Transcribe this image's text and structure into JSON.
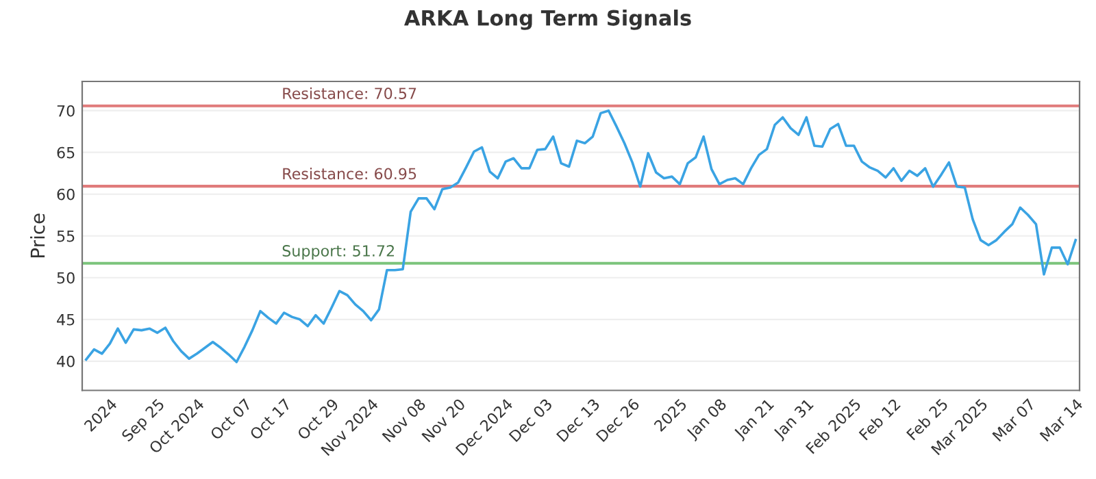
{
  "chart_data": {
    "type": "line",
    "title": "ARKA Long Term Signals",
    "ylabel": "Price",
    "categories": [
      null,
      null,
      null,
      "2024",
      null,
      null,
      null,
      null,
      null,
      "Sep 25",
      null,
      null,
      null,
      null,
      "Oct 2024",
      null,
      null,
      null,
      null,
      null,
      "Oct 07",
      null,
      null,
      null,
      null,
      "Oct 17",
      null,
      null,
      null,
      null,
      null,
      "Oct 29",
      null,
      null,
      null,
      null,
      "Nov 2024",
      null,
      null,
      null,
      null,
      null,
      "Nov 08",
      null,
      null,
      null,
      null,
      "Nov 20",
      null,
      null,
      null,
      null,
      null,
      "Dec 2024",
      null,
      null,
      null,
      null,
      "Dec 03",
      null,
      null,
      null,
      null,
      null,
      "Dec 13",
      null,
      null,
      null,
      null,
      "Dec 26",
      null,
      null,
      null,
      null,
      null,
      "2025",
      null,
      null,
      null,
      null,
      "Jan 08",
      null,
      null,
      null,
      null,
      null,
      "Jan 21",
      null,
      null,
      null,
      null,
      "Jan 31",
      null,
      null,
      null,
      null,
      null,
      "Feb 2025",
      null,
      null,
      null,
      null,
      "Feb 12",
      null,
      null,
      null,
      null,
      null,
      "Feb 25",
      null,
      null,
      null,
      null,
      "Mar 2025",
      null,
      null,
      null,
      null,
      null,
      "Mar 07",
      null,
      null,
      null,
      null,
      null,
      "Mar 14"
    ],
    "series": [
      {
        "color": "#3aa3e3",
        "values": [
          40.2,
          41.4,
          40.9,
          42.1,
          43.9,
          42.2,
          43.8,
          43.7,
          43.9,
          43.4,
          44.0,
          42.4,
          41.2,
          40.3,
          40.9,
          41.6,
          42.3,
          41.6,
          40.8,
          39.9,
          41.7,
          43.7,
          46.0,
          45.2,
          44.5,
          45.8,
          45.3,
          45.0,
          44.2,
          45.5,
          44.5,
          46.4,
          48.4,
          47.9,
          46.8,
          46.0,
          44.9,
          46.2,
          50.9,
          50.9,
          51.0,
          57.9,
          59.5,
          59.5,
          58.2,
          60.6,
          60.8,
          61.4,
          63.2,
          65.1,
          65.6,
          62.7,
          61.9,
          63.9,
          64.3,
          63.1,
          63.1,
          65.3,
          65.4,
          66.9,
          63.7,
          63.3,
          66.4,
          66.1,
          66.9,
          69.7,
          70.0,
          68.1,
          66.1,
          63.8,
          60.9,
          64.9,
          62.6,
          61.9,
          62.1,
          61.2,
          63.7,
          64.4,
          66.9,
          63.0,
          61.2,
          61.7,
          61.9,
          61.2,
          63.1,
          64.7,
          65.4,
          68.3,
          69.2,
          67.9,
          67.1,
          69.2,
          65.8,
          65.7,
          67.8,
          68.4,
          65.8,
          65.8,
          63.9,
          63.2,
          62.8,
          62.0,
          63.1,
          61.6,
          62.8,
          62.2,
          63.1,
          60.9,
          62.3,
          63.8,
          60.9,
          60.8,
          57.0,
          54.5,
          53.9,
          54.5,
          55.5,
          56.4,
          58.4,
          57.5,
          56.4,
          50.4,
          53.6,
          53.6,
          51.6,
          54.5
        ]
      }
    ],
    "ylim": [
      36.5,
      73.5
    ],
    "yticks": [
      40,
      45,
      50,
      55,
      60,
      65,
      70
    ],
    "grid": "y",
    "ref_lines": [
      {
        "axis": "y",
        "value": 70.57,
        "label": "Resistance: 70.57",
        "color": "#e07b7b"
      },
      {
        "axis": "y",
        "value": 60.95,
        "label": "Resistance: 60.95",
        "color": "#e07b7b"
      },
      {
        "axis": "y",
        "value": 51.72,
        "label": "Support: 51.72",
        "color": "#7cc47c"
      }
    ]
  }
}
